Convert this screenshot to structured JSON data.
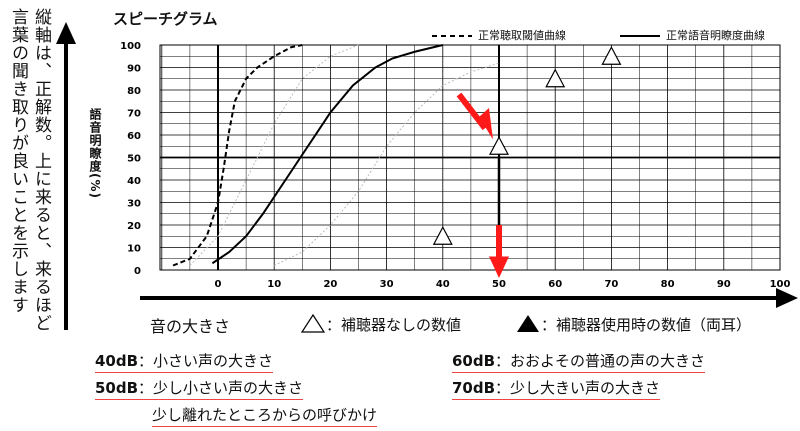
{
  "side_note": "縦軸は、正解数。上に来ると、来るほど言葉の聞き取りが良いことを示します",
  "chart_data": {
    "type": "line",
    "title": "スピーチグラム",
    "xlabel": "音の大きさ",
    "ylabel": "語音明瞭度(%)",
    "xlim": [
      -10,
      100
    ],
    "ylim": [
      0,
      100
    ],
    "x_ticks": [
      "0",
      "10",
      "20",
      "30",
      "40",
      "50",
      "60",
      "70",
      "80",
      "90",
      "100"
    ],
    "y_ticks": [
      "0",
      "10",
      "20",
      "30",
      "40",
      "50",
      "60",
      "70",
      "80",
      "90",
      "100"
    ],
    "grid": true,
    "legend": [
      {
        "name": "正常聴取閾値曲線",
        "style": "dashed"
      },
      {
        "name": "正常語音明瞭度曲線",
        "style": "solid"
      }
    ],
    "series": [
      {
        "name": "正常聴取閾値曲線",
        "style": "dashed",
        "x": [
          -8,
          -5,
          -2,
          0,
          1,
          2,
          3,
          5,
          7,
          10,
          13,
          15
        ],
        "y": [
          2,
          5,
          15,
          30,
          45,
          62,
          75,
          85,
          90,
          95,
          99,
          100
        ]
      },
      {
        "name": "正常語音明瞭度曲線",
        "style": "solid",
        "x": [
          -1,
          2,
          5,
          8,
          12,
          16,
          20,
          24,
          28,
          31,
          35,
          40
        ],
        "y": [
          3,
          8,
          15,
          25,
          40,
          55,
          70,
          82,
          90,
          94,
          97,
          100
        ]
      },
      {
        "style": "dotted-light",
        "x": [
          -5,
          0,
          5,
          10,
          15,
          20,
          25
        ],
        "y": [
          2,
          15,
          40,
          65,
          85,
          95,
          100
        ]
      },
      {
        "style": "dotted-light",
        "x": [
          10,
          15,
          20,
          25,
          30,
          35,
          40,
          45,
          50
        ],
        "y": [
          2,
          8,
          20,
          35,
          55,
          70,
          82,
          88,
          92
        ]
      }
    ],
    "unaided_points": [
      {
        "x": 40,
        "y": 15
      },
      {
        "x": 50,
        "y": 55
      },
      {
        "x": 60,
        "y": 85
      },
      {
        "x": 70,
        "y": 95
      }
    ],
    "aided_drop": {
      "x": 50,
      "from": 55,
      "to": 0
    }
  },
  "legend_bottom": {
    "open": "：補聴器なしの数値",
    "filled": "：補聴器使用時の数値（両耳）"
  },
  "notes": [
    {
      "db": "40dB",
      "text": "：小さい声の大きさ"
    },
    {
      "db": "50dB",
      "text": "：少し小さい声の大きさ",
      "text2": "少し離れたところからの呼びかけ"
    },
    {
      "db": "60dB",
      "text": "：おおよその普通の声の大きさ"
    },
    {
      "db": "70dB",
      "text": "：少し大きい声の大きさ"
    }
  ],
  "colors": {
    "arrow_red": "#ff1a1a",
    "underline": "#e44",
    "line": "#000",
    "dotted": "#bbb"
  }
}
